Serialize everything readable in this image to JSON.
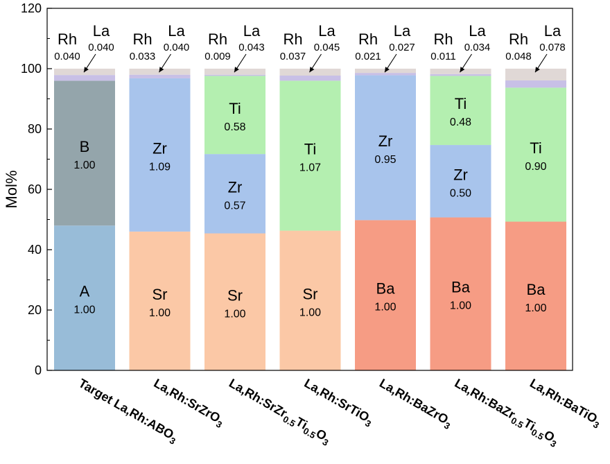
{
  "chart_data": {
    "type": "bar",
    "stacked": true,
    "ylabel": "Mol%",
    "ylim": [
      0,
      120
    ],
    "yticks": [
      "0",
      "20",
      "40",
      "60",
      "80",
      "100",
      "120"
    ],
    "categories": [
      {
        "parts": [
          {
            "t": "Target La,Rh:ABO"
          },
          {
            "t": "3",
            "sub": true
          }
        ]
      },
      {
        "parts": [
          {
            "t": "La,Rh:SrZrO"
          },
          {
            "t": "3",
            "sub": true
          }
        ]
      },
      {
        "parts": [
          {
            "t": "La,Rh:SrZr"
          },
          {
            "t": "0.5",
            "sub": true
          },
          {
            "t": "Ti"
          },
          {
            "t": "0.5",
            "sub": true
          },
          {
            "t": "O"
          },
          {
            "t": "3",
            "sub": true
          }
        ]
      },
      {
        "parts": [
          {
            "t": "La,Rh:SrTiO"
          },
          {
            "t": "3",
            "sub": true
          }
        ]
      },
      {
        "parts": [
          {
            "t": "La,Rh:BaZrO"
          },
          {
            "t": "3",
            "sub": true
          }
        ]
      },
      {
        "parts": [
          {
            "t": "La,Rh:BaZr"
          },
          {
            "t": "0.5",
            "sub": true
          },
          {
            "t": "Ti"
          },
          {
            "t": "0.5",
            "sub": true
          },
          {
            "t": "O"
          },
          {
            "t": "3",
            "sub": true
          }
        ]
      },
      {
        "parts": [
          {
            "t": "La,Rh:BaTiO"
          },
          {
            "t": "3",
            "sub": true
          }
        ]
      }
    ],
    "colors": {
      "A": "#98bcd8",
      "B": "#94a5ab",
      "Sr": "#fbc8a6",
      "Ba": "#f69c84",
      "Zr": "#a8c4ec",
      "Ti": "#b4efb0",
      "Rh": "#c8c0e6",
      "La": "#e0d8d6"
    },
    "bars": [
      {
        "segments": [
          {
            "name": "A",
            "value": 48.0,
            "label": "1.00"
          },
          {
            "name": "B",
            "value": 48.0,
            "label": "1.00"
          },
          {
            "name": "Rh",
            "value": 1.9
          },
          {
            "name": "La",
            "value": 2.1
          }
        ],
        "rh": "0.040",
        "la": "0.040"
      },
      {
        "segments": [
          {
            "name": "Sr",
            "value": 46.0,
            "label": "1.00"
          },
          {
            "name": "Zr",
            "value": 50.8,
            "label": "1.09"
          },
          {
            "name": "Rh",
            "value": 1.2
          },
          {
            "name": "La",
            "value": 2.0
          }
        ],
        "rh": "0.033",
        "la": "0.040"
      },
      {
        "segments": [
          {
            "name": "Sr",
            "value": 45.4,
            "label": "1.00"
          },
          {
            "name": "Zr",
            "value": 26.3,
            "label": "0.57"
          },
          {
            "name": "Ti",
            "value": 25.9,
            "label": "0.58"
          },
          {
            "name": "Rh",
            "value": 0.4
          },
          {
            "name": "La",
            "value": 2.0
          }
        ],
        "rh": "0.009",
        "la": "0.043"
      },
      {
        "segments": [
          {
            "name": "Sr",
            "value": 46.3,
            "label": "1.00"
          },
          {
            "name": "Ti",
            "value": 49.7,
            "label": "1.07"
          },
          {
            "name": "Rh",
            "value": 1.7
          },
          {
            "name": "La",
            "value": 2.3
          }
        ],
        "rh": "0.037",
        "la": "0.045"
      },
      {
        "segments": [
          {
            "name": "Ba",
            "value": 49.8,
            "label": "1.00"
          },
          {
            "name": "Zr",
            "value": 48.0,
            "label": "0.95"
          },
          {
            "name": "Rh",
            "value": 0.8
          },
          {
            "name": "La",
            "value": 1.4
          }
        ],
        "rh": "0.021",
        "la": "0.027"
      },
      {
        "segments": [
          {
            "name": "Ba",
            "value": 50.7,
            "label": "1.00"
          },
          {
            "name": "Zr",
            "value": 24.0,
            "label": "0.50"
          },
          {
            "name": "Ti",
            "value": 22.9,
            "label": "0.48"
          },
          {
            "name": "Rh",
            "value": 0.6
          },
          {
            "name": "La",
            "value": 1.8
          }
        ],
        "rh": "0.011",
        "la": "0.034"
      },
      {
        "segments": [
          {
            "name": "Ba",
            "value": 49.3,
            "label": "1.00"
          },
          {
            "name": "Ti",
            "value": 44.4,
            "label": "0.90"
          },
          {
            "name": "Rh",
            "value": 2.4
          },
          {
            "name": "La",
            "value": 3.9
          }
        ],
        "rh": "0.048",
        "la": "0.078"
      }
    ]
  }
}
